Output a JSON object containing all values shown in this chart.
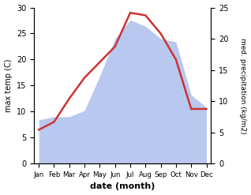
{
  "months": [
    "Jan",
    "Feb",
    "Mar",
    "Apr",
    "May",
    "Jun",
    "Jul",
    "Aug",
    "Sep",
    "Oct",
    "Nov",
    "Dec"
  ],
  "temperature": [
    6.5,
    8.0,
    12.5,
    16.5,
    19.5,
    22.5,
    29.0,
    28.5,
    25.0,
    20.0,
    10.5,
    10.5
  ],
  "precipitation": [
    7.0,
    7.5,
    7.5,
    8.5,
    14.0,
    20.0,
    23.0,
    22.0,
    20.0,
    19.5,
    11.0,
    9.0
  ],
  "temp_color": "#cc3333",
  "precip_color": "#b8c8ee",
  "temp_ylim": [
    0,
    30
  ],
  "precip_ylim": [
    0,
    25
  ],
  "temp_yticks": [
    0,
    5,
    10,
    15,
    20,
    25,
    30
  ],
  "precip_yticks": [
    0,
    5,
    10,
    15,
    20,
    25
  ],
  "xlabel": "date (month)",
  "ylabel_left": "max temp (C)",
  "ylabel_right": "med. precipitation (kg/m2)",
  "figsize": [
    3.18,
    2.47
  ],
  "dpi": 100
}
